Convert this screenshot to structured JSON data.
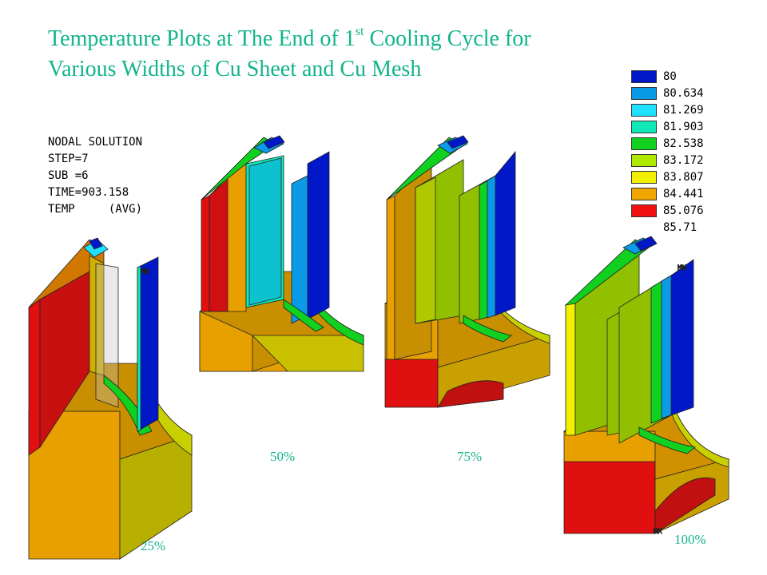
{
  "title": {
    "line1_prefix": "Temperature Plots at The End of 1",
    "line1_sup": "st",
    "line1_suffix": " Cooling Cycle for",
    "line2": "Various Widths of Cu Sheet and Cu Mesh"
  },
  "nodal_solution": [
    "NODAL SOLUTION",
    "STEP=7",
    "SUB =6",
    "TIME=903.158",
    "TEMP     (AVG)"
  ],
  "legend": [
    {
      "label": "80",
      "color": "#0018c8"
    },
    {
      "label": "80.634",
      "color": "#0a9ae6"
    },
    {
      "label": "81.269",
      "color": "#20e0ff"
    },
    {
      "label": "81.903",
      "color": "#10e8b8"
    },
    {
      "label": "82.538",
      "color": "#10d020"
    },
    {
      "label": "83.172",
      "color": "#b0e800"
    },
    {
      "label": "83.807",
      "color": "#f0f000"
    },
    {
      "label": "84.441",
      "color": "#f0a800"
    },
    {
      "label": "85.076",
      "color": "#f01010"
    },
    {
      "label": "85.71",
      "color": ""
    }
  ],
  "models": [
    {
      "label": "25%",
      "mn_marker": "MN",
      "mx_marker": ""
    },
    {
      "label": "50%",
      "mn_marker": "",
      "mx_marker": ""
    },
    {
      "label": "75%",
      "mn_marker": "",
      "mx_marker": ""
    },
    {
      "label": "100%",
      "mn_marker": "MN",
      "mx_marker": "MX"
    }
  ]
}
